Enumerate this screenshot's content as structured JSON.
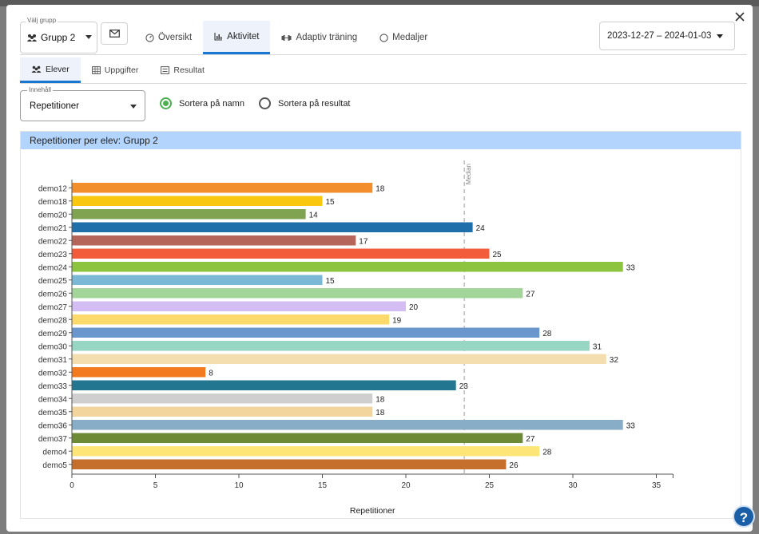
{
  "header": {
    "group_select": {
      "legend": "Välj grupp",
      "value": "Grupp 2"
    },
    "tabs": [
      {
        "label": "Översikt",
        "icon": "gauge-icon"
      },
      {
        "label": "Aktivitet",
        "icon": "chart-bar-icon"
      },
      {
        "label": "Adaptiv träning",
        "icon": "dumbbell-icon"
      },
      {
        "label": "Medaljer",
        "icon": "circle-icon"
      }
    ],
    "active_tab": "Aktivitet",
    "date_range": "2023-12-27 – 2024-01-03"
  },
  "subtabs": [
    {
      "label": "Elever",
      "icon": "users-icon"
    },
    {
      "label": "Uppgifter",
      "icon": "table-icon"
    },
    {
      "label": "Resultat",
      "icon": "list-icon"
    }
  ],
  "active_subtab": "Elever",
  "content_select": {
    "legend": "Innehåll",
    "value": "Repetitioner"
  },
  "sort_options": [
    {
      "label": "Sortera på namn",
      "checked": true
    },
    {
      "label": "Sortera på resultat",
      "checked": false
    }
  ],
  "panel": {
    "title": "Repetitioner per elev: Grupp 2"
  },
  "chart_data": {
    "type": "bar",
    "orientation": "horizontal",
    "xlabel": "Repetitioner",
    "xlim": [
      0,
      36
    ],
    "xticks": [
      0,
      5,
      10,
      15,
      20,
      25,
      30,
      35
    ],
    "median": {
      "label": "Median",
      "value": 23.5
    },
    "categories": [
      "demo12",
      "demo18",
      "demo20",
      "demo21",
      "demo22",
      "demo23",
      "demo24",
      "demo25",
      "demo26",
      "demo27",
      "demo28",
      "demo29",
      "demo30",
      "demo31",
      "demo32",
      "demo33",
      "demo34",
      "demo35",
      "demo36",
      "demo37",
      "demo4",
      "demo5"
    ],
    "values": [
      18,
      15,
      14,
      24,
      17,
      25,
      33,
      15,
      27,
      20,
      19,
      28,
      31,
      32,
      8,
      23,
      18,
      18,
      33,
      27,
      28,
      26
    ],
    "colors": [
      "#f28e2b",
      "#f9c80e",
      "#7fa350",
      "#1f6fab",
      "#b5655a",
      "#f25c3a",
      "#8cc43f",
      "#7ab8d6",
      "#a3d49a",
      "#d4bdf2",
      "#fcd96b",
      "#6a96ce",
      "#96d6c2",
      "#f4deb0",
      "#f37a1f",
      "#22768f",
      "#cfcfcf",
      "#f1d59c",
      "#87aec6",
      "#6d8a37",
      "#fde677",
      "#c66e2b"
    ]
  },
  "help": {
    "label": "?"
  }
}
